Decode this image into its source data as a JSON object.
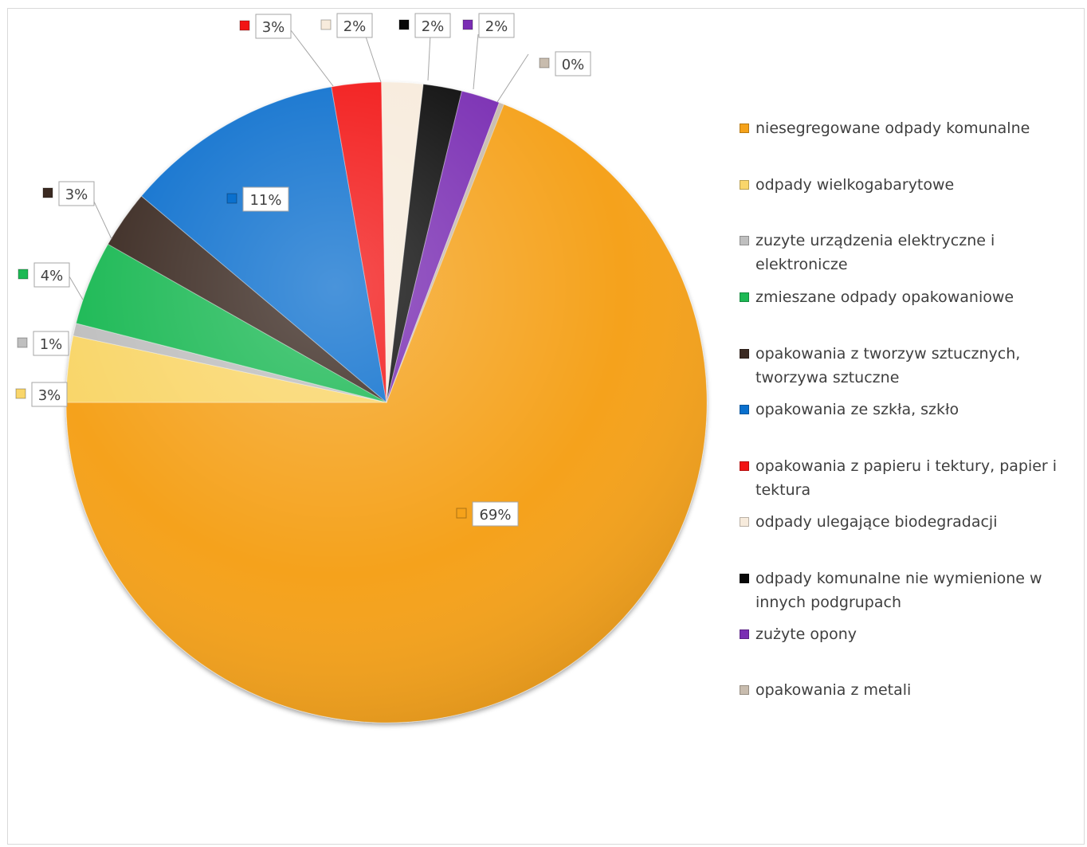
{
  "chart_data": {
    "type": "pie",
    "title": "",
    "legend_position": "right",
    "slices": [
      {
        "label": "niesegregowane odpady komunalne",
        "value": 69,
        "data_label": "69%",
        "color": "#F5A21A"
      },
      {
        "label": "odpady wielkogabarytowe",
        "value": 3,
        "data_label": "3%",
        "color": "#F9D66B"
      },
      {
        "label": "zuzyte urządzenia elektryczne i elektronicze",
        "value": 1,
        "data_label": "1%",
        "color": "#BFBFBF"
      },
      {
        "label": "zmieszane odpady opakowaniowe",
        "value": 4,
        "data_label": "4%",
        "color": "#1DB954"
      },
      {
        "label": "opakowania z tworzyw sztucznych, tworzywa sztuczne",
        "value": 3,
        "data_label": "3%",
        "color": "#3B2A22"
      },
      {
        "label": "opakowania ze szkła, szkło",
        "value": 11,
        "data_label": "11%",
        "color": "#0A70CE"
      },
      {
        "label": "opakowania z papieru i tektury, papier i tektura",
        "value": 3,
        "data_label": "3%",
        "color": "#F21414"
      },
      {
        "label": "odpady ulegające biodegradacji",
        "value": 2,
        "data_label": "2%",
        "color": "#F7EBDC"
      },
      {
        "label": "odpady komunalne nie wymienione w innych podgrupach",
        "value": 2,
        "data_label": "2%",
        "color": "#080808"
      },
      {
        "label": "zużyte opony",
        "value": 2,
        "data_label": "2%",
        "color": "#7A2DB3"
      },
      {
        "label": "opakowania z metali",
        "value": 0,
        "data_label": "0%",
        "color": "#C8BCAE"
      }
    ]
  },
  "legend": [
    {
      "lines": [
        "niesegregowane odpady komunalne"
      ],
      "color": "#F5A21A",
      "icon": "orange-square-icon"
    },
    {
      "lines": [
        "odpady wielkogabarytowe"
      ],
      "color": "#F9D66B",
      "icon": "yellow-square-icon"
    },
    {
      "lines": [
        "zuzyte urządzenia elektryczne i",
        "elektronicze"
      ],
      "color": "#BFBFBF",
      "icon": "gray-square-icon"
    },
    {
      "lines": [
        "zmieszane odpady opakowaniowe"
      ],
      "color": "#1DB954",
      "icon": "green-square-icon"
    },
    {
      "lines": [
        "opakowania z tworzyw sztucznych,",
        "tworzywa sztuczne"
      ],
      "color": "#3B2A22",
      "icon": "brown-square-icon"
    },
    {
      "lines": [
        "opakowania ze szkła, szkło"
      ],
      "color": "#0A70CE",
      "icon": "blue-square-icon"
    },
    {
      "lines": [
        "opakowania z papieru i tektury, papier i",
        "tektura"
      ],
      "color": "#F21414",
      "icon": "red-square-icon"
    },
    {
      "lines": [
        "odpady ulegające biodegradacji"
      ],
      "color": "#F7EBDC",
      "icon": "cream-square-icon"
    },
    {
      "lines": [
        "odpady komunalne nie wymienione w",
        "innych podgrupach"
      ],
      "color": "#080808",
      "icon": "black-square-icon"
    },
    {
      "lines": [
        "zużyte opony"
      ],
      "color": "#7A2DB3",
      "icon": "purple-square-icon"
    },
    {
      "lines": [
        "opakowania z metali"
      ],
      "color": "#C8BCAE",
      "icon": "taupe-square-icon"
    }
  ]
}
